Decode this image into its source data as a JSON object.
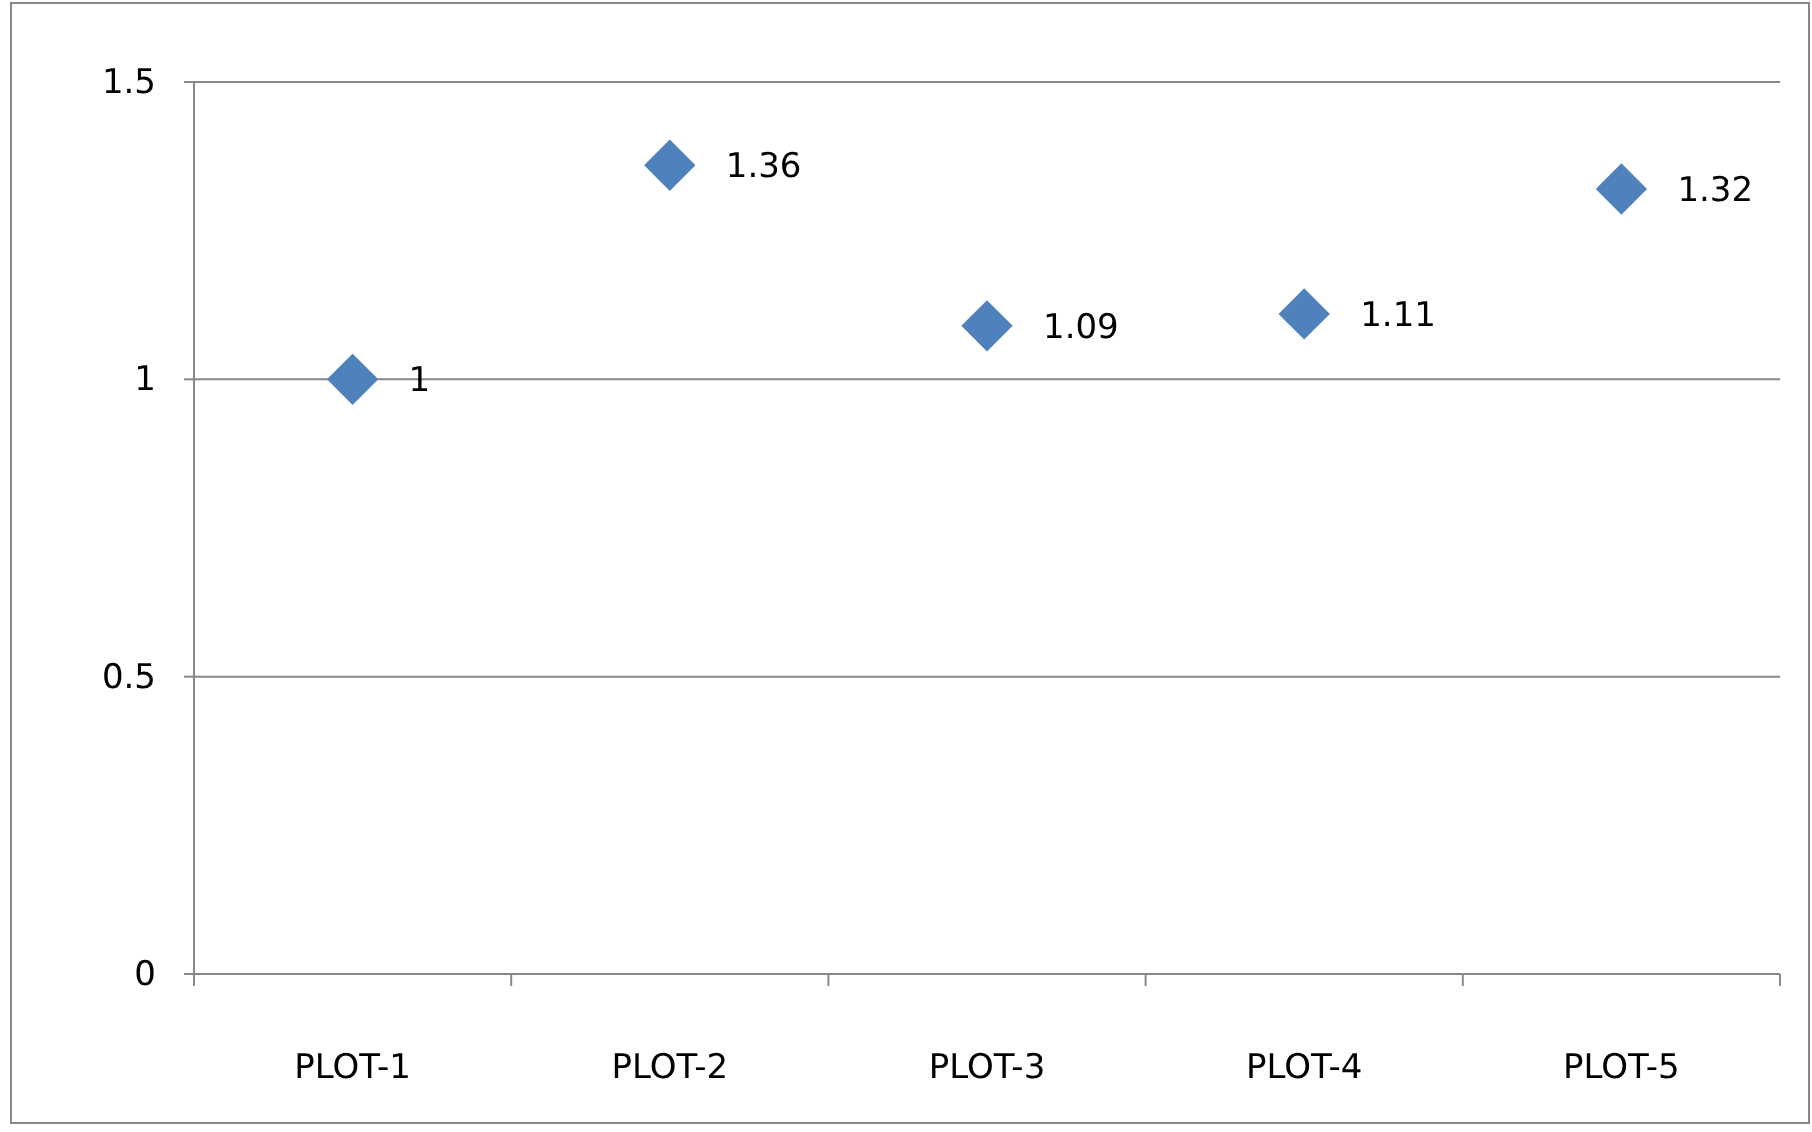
{
  "chart_data": {
    "type": "scatter",
    "categories": [
      "PLOT-1",
      "PLOT-2",
      "PLOT-3",
      "PLOT-4",
      "PLOT-5"
    ],
    "values": [
      1,
      1.36,
      1.09,
      1.11,
      1.32
    ],
    "color": "#4f81bd",
    "ylim": [
      0,
      1.5
    ],
    "yticks": [
      0,
      0.5,
      1,
      1.5
    ],
    "grid": "y",
    "marker": "diamond",
    "data_labels": true
  }
}
